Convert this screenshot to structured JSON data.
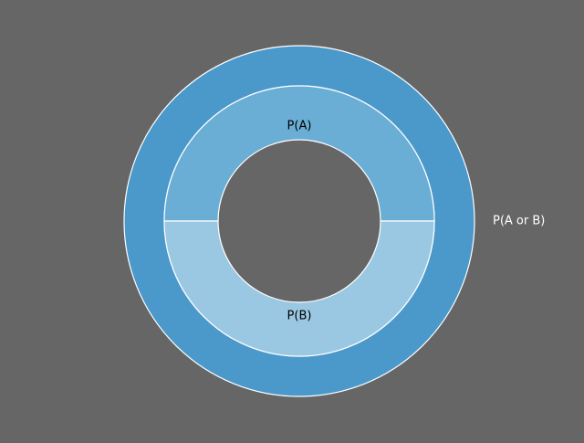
{
  "chart_data": {
    "type": "pie",
    "subtype": "nested-donut",
    "title": "",
    "background": "#666666",
    "outer_ring": {
      "labels": [
        "P(A or B)"
      ],
      "values": [
        1
      ],
      "colors": [
        "#4b98ca"
      ],
      "label_color": "#ffffff"
    },
    "inner_ring": {
      "labels": [
        "P(A)",
        "P(B)"
      ],
      "values": [
        0.5,
        0.5
      ],
      "colors": [
        "#6aaed6",
        "#9ac8e2"
      ],
      "label_color": "#000000"
    },
    "edge_color": "#ffffff"
  }
}
